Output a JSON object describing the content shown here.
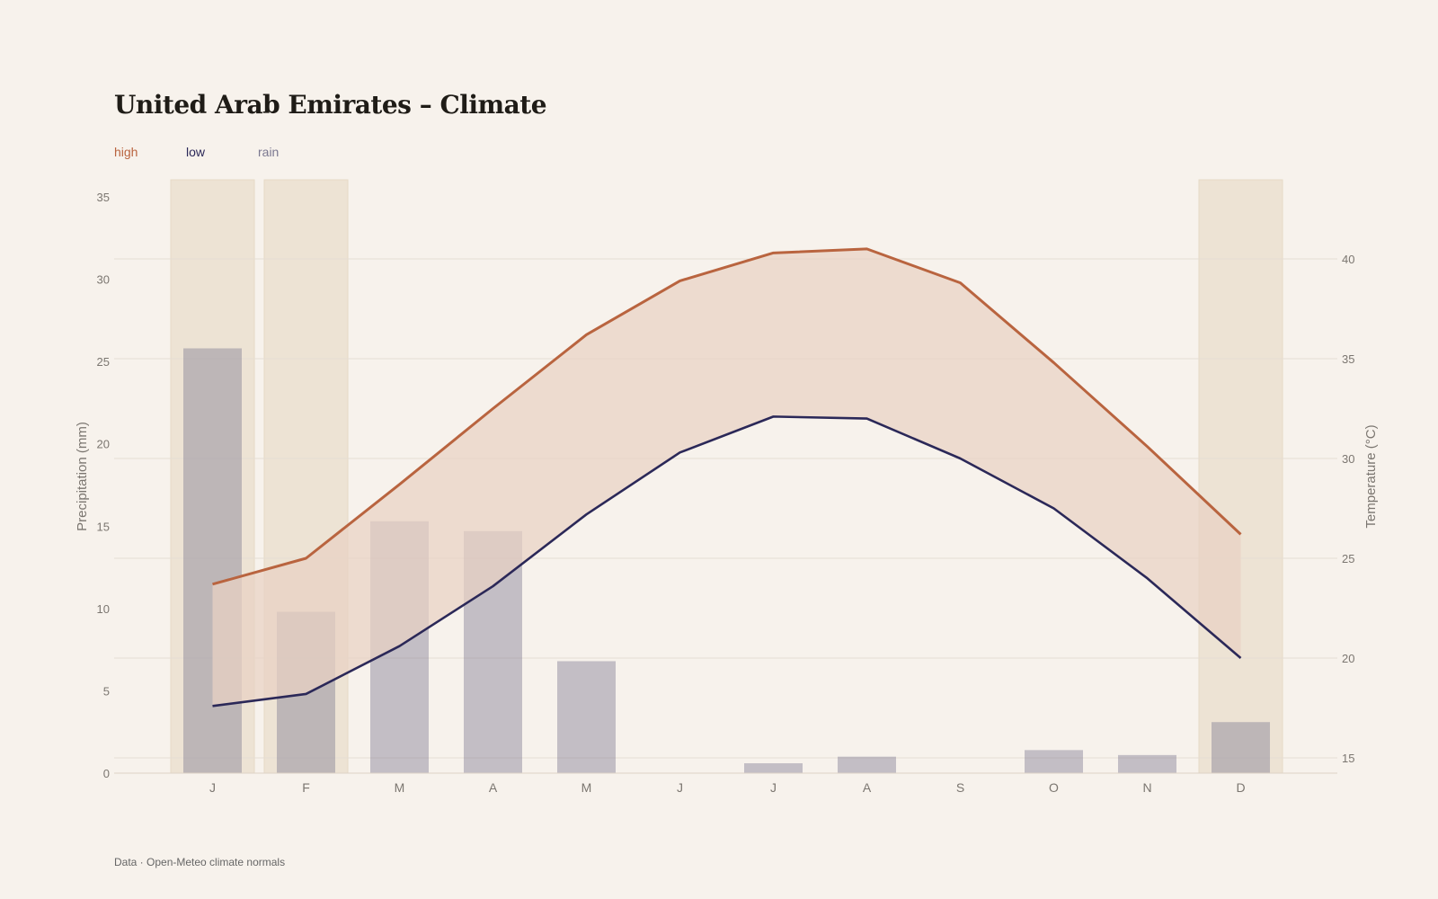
{
  "chart_data": {
    "type": "bar",
    "title": "United Arab Emirates – Climate",
    "categories": [
      "J",
      "F",
      "M",
      "A",
      "M",
      "J",
      "J",
      "A",
      "S",
      "O",
      "N",
      "D"
    ],
    "series": [
      {
        "name": "high",
        "type": "line",
        "axis": "right",
        "values": [
          23.7,
          25.0,
          28.7,
          32.5,
          36.2,
          38.9,
          40.3,
          40.5,
          38.8,
          34.8,
          30.6,
          26.2
        ]
      },
      {
        "name": "low",
        "type": "line",
        "axis": "right",
        "values": [
          17.6,
          18.2,
          20.6,
          23.6,
          27.2,
          30.3,
          32.1,
          32.0,
          30.0,
          27.5,
          24.0,
          20.0
        ]
      },
      {
        "name": "rain",
        "type": "bar",
        "axis": "left",
        "values": [
          25.8,
          9.8,
          15.3,
          14.7,
          6.8,
          0,
          0.6,
          1.0,
          0,
          1.4,
          1.1,
          3.1
        ]
      }
    ],
    "highlighted_months": [
      0,
      1,
      11
    ],
    "ylabel": "Precipitation (mm)",
    "ylabel_right": "Temperature (°C)",
    "ylim": [
      0,
      35
    ],
    "ylim_right": [
      14.2,
      42.6
    ],
    "yticks": [
      0,
      5,
      10,
      15,
      20,
      25,
      30,
      35
    ],
    "yticks_right": [
      15,
      20,
      25,
      30,
      35,
      40
    ],
    "legend_position": "top-left",
    "grid": true
  },
  "colors": {
    "high": "#b9643f",
    "low": "#2b2858",
    "rain": "#7b7890",
    "band_fill": "#e9d1c4",
    "highlight": "#ede3d4"
  },
  "footer": "Data · Open-Meteo climate normals"
}
